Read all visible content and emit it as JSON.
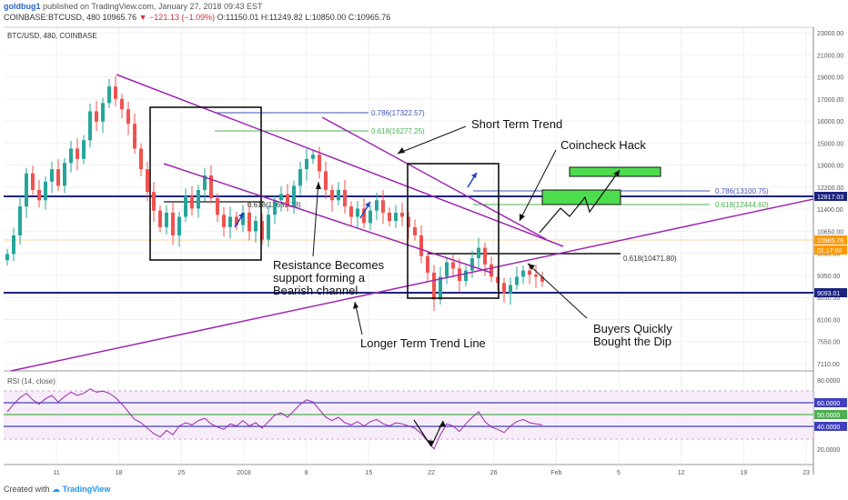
{
  "header": {
    "user": "goldbug1",
    "published": "published on TradingView.com, January 27, 2018 09:43 EST",
    "symbol": "COINBASE:BTCUSD, 480",
    "last": "10965.76",
    "change_arrow": "▼",
    "change": "−121.13 (−1.09%)",
    "ohlc": "O:11150.01 H:11249.82 L:10850.00 C:10965.76"
  },
  "footer": {
    "created_with": "Created with",
    "brand": "TradingView"
  },
  "colors": {
    "bull": "#26a69a",
    "bear": "#ef5350",
    "channel": "#9c27b0",
    "level": "#1a237e",
    "fib_blue": "#3f51b5",
    "fib_green": "#4caf50",
    "zone": "#4ddc4d",
    "rsi": "#9c27b0",
    "price_line": "#ff9800"
  },
  "chart_data": {
    "type": "candlestick",
    "title": "BTC/USD, 480, COINBASE",
    "price_axis_ticks": [
      "23000.00",
      "21000.00",
      "19000.00",
      "17000.00",
      "16000.00",
      "15000.00",
      "13000.00",
      "12200.00",
      "11400.00",
      "10650.00",
      "9850.00",
      "9350.00",
      "8650.00",
      "8100.00",
      "7550.00",
      "7110.00"
    ],
    "date_ticks": [
      "11",
      "18",
      "25",
      "2018",
      "8",
      "15",
      "22",
      "26",
      "Feb",
      "5",
      "12",
      "19",
      "23"
    ],
    "price_labels": [
      {
        "value": "12817.03",
        "color": "#1a237e"
      },
      {
        "value": "10965.76",
        "color": "#ff9800"
      },
      {
        "value": "01:17:00",
        "color": "#ff9800"
      },
      {
        "value": "9093.01",
        "color": "#1a237e"
      }
    ],
    "fib_levels": [
      {
        "label": "0.786(17322.57)",
        "color": "#3f51b5"
      },
      {
        "label": "0.618(16277.25)",
        "color": "#4caf50"
      },
      {
        "label": "0.618(12683.18)",
        "color": "#333333"
      },
      {
        "label": "0.786(13100.75)",
        "color": "#3f51b5"
      },
      {
        "label": "0.618(12444.60)",
        "color": "#4caf50"
      },
      {
        "label": "0.618(10471.80)",
        "color": "#333333"
      }
    ],
    "annotations": {
      "short_term": "Short Term Trend",
      "coincheck": "Coincheck Hack",
      "resistance": [
        "Resistance Becomes",
        "support forming a",
        "Bearish channel"
      ],
      "longer_term": "Longer Term Trend Line",
      "buyers": [
        "Buyers Quickly",
        "Bought the Dip"
      ]
    },
    "closes": [
      12300,
      13200,
      14600,
      16200,
      15400,
      14900,
      15800,
      16400,
      15600,
      16700,
      17400,
      16900,
      17800,
      19200,
      18700,
      19600,
      20400,
      19800,
      19300,
      18600,
      17400,
      16400,
      15300,
      14400,
      13600,
      14300,
      13200,
      14100,
      15100,
      14500,
      15400,
      16100,
      15000,
      14200,
      13600,
      14100,
      13700,
      14300,
      13400,
      13900,
      13000,
      14200,
      14900,
      15200,
      14600,
      15600,
      16400,
      16900,
      17100,
      16300,
      15400,
      14900,
      15400,
      14600,
      14100,
      14500,
      13800,
      14400,
      14900,
      14300,
      13900,
      14300,
      14100,
      13600,
      13200,
      12200,
      11400,
      10100,
      11200,
      11900,
      11600,
      11000,
      11500,
      12100,
      12600,
      11800,
      11200,
      10900,
      10400,
      10800,
      11200,
      11500,
      11300,
      11200,
      10965
    ],
    "rsi": {
      "title": "RSI (14, close)",
      "ticks": [
        "80.0000",
        "20.0000"
      ],
      "levels": [
        {
          "label": "60.0000",
          "value": 60
        },
        {
          "label": "50.0000",
          "value": 50
        },
        {
          "label": "40.0000",
          "value": 40
        }
      ],
      "values": [
        55,
        62,
        68,
        72,
        66,
        62,
        67,
        70,
        64,
        69,
        73,
        70,
        72,
        76,
        73,
        74,
        72,
        68,
        62,
        55,
        48,
        45,
        40,
        35,
        32,
        38,
        34,
        42,
        45,
        43,
        47,
        49,
        44,
        41,
        39,
        44,
        42,
        47,
        42,
        45,
        40,
        46,
        52,
        54,
        50,
        56,
        62,
        66,
        64,
        57,
        50,
        47,
        50,
        45,
        43,
        46,
        42,
        46,
        48,
        44,
        42,
        45,
        44,
        42,
        40,
        35,
        28,
        21,
        34,
        44,
        42,
        37,
        44,
        50,
        55,
        46,
        41,
        39,
        36,
        42,
        46,
        48,
        45,
        44,
        43
      ]
    }
  }
}
